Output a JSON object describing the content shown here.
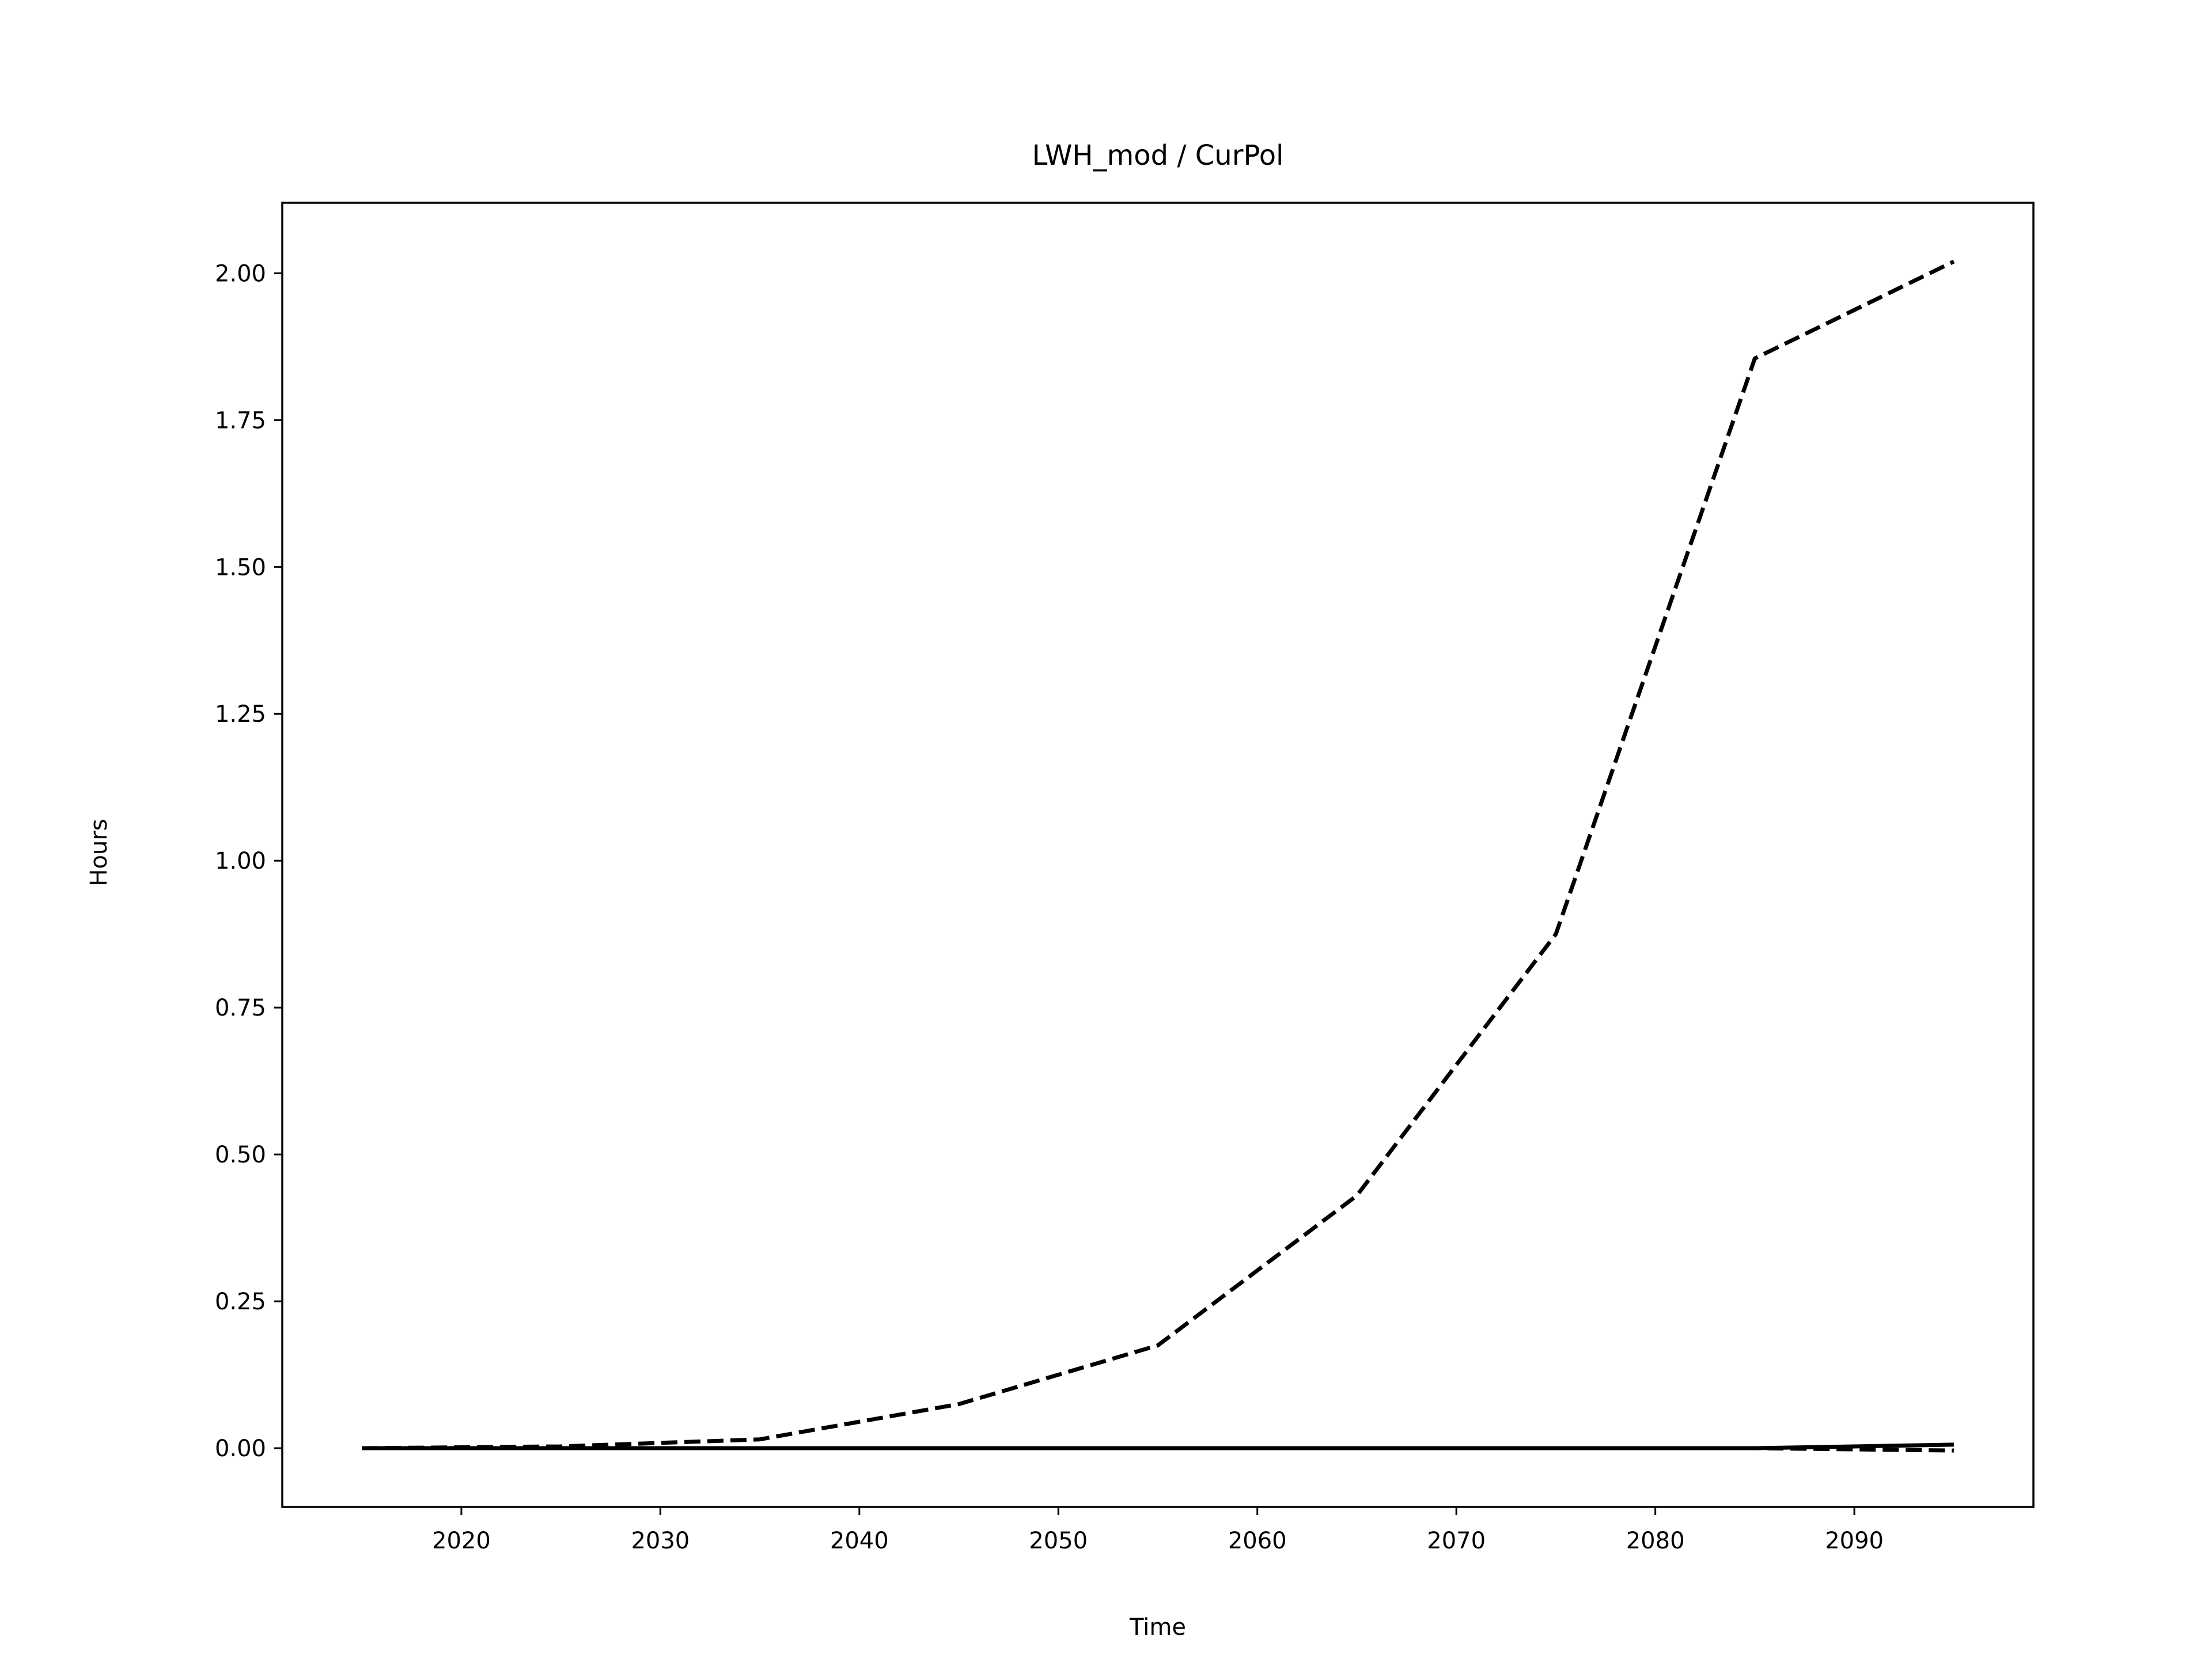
{
  "chart_data": {
    "type": "line",
    "title": "LWH_mod / CurPol",
    "xlabel": "Time",
    "ylabel": "Hours",
    "xlim": [
      2011,
      2099
    ],
    "ylim": [
      -0.1,
      2.12
    ],
    "grid": false,
    "x_ticks": [
      2020,
      2030,
      2040,
      2050,
      2060,
      2070,
      2080,
      2090
    ],
    "y_ticks": [
      0.0,
      0.25,
      0.5,
      0.75,
      1.0,
      1.25,
      1.5,
      1.75,
      2.0
    ],
    "x_tick_labels": [
      "2020",
      "2030",
      "2040",
      "2050",
      "2060",
      "2070",
      "2080",
      "2090"
    ],
    "y_tick_labels": [
      "0.00",
      "0.25",
      "0.50",
      "0.75",
      "1.00",
      "1.25",
      "1.50",
      "1.75",
      "2.00"
    ],
    "x": [
      2015,
      2025,
      2035,
      2045,
      2055,
      2065,
      2075,
      2085,
      2095
    ],
    "series": [
      {
        "style": "dashed",
        "color": "#000000",
        "values": [
          0.0,
          0.003,
          0.015,
          0.075,
          0.175,
          0.43,
          0.875,
          1.855,
          2.02
        ]
      },
      {
        "style": "solid",
        "color": "#000000",
        "values": [
          0.0,
          0.0,
          0.0,
          0.0,
          0.0,
          0.0,
          0.0,
          0.0,
          0.006
        ]
      },
      {
        "style": "dashed",
        "color": "#000000",
        "values": [
          0.0,
          0.0,
          0.0,
          0.0,
          0.0,
          0.0,
          0.0,
          0.0,
          -0.004
        ]
      }
    ]
  }
}
